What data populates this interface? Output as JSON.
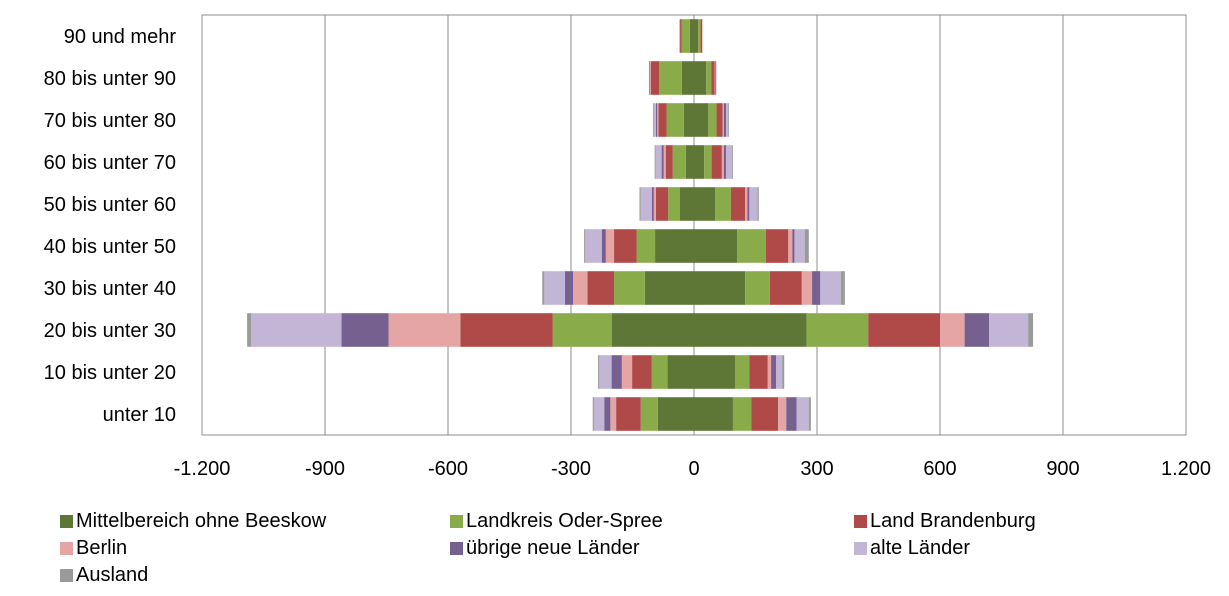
{
  "chart_data": {
    "type": "bar",
    "orientation": "horizontal",
    "stacked": true,
    "layout": "population-pyramid",
    "xlim": [
      -1200,
      1200
    ],
    "xticks": [
      "-1.200",
      "-900",
      "-600",
      "-300",
      "0",
      "300",
      "600",
      "900",
      "1.200"
    ],
    "tick_values": [
      -1200,
      -900,
      -600,
      -300,
      0,
      300,
      600,
      900,
      1200
    ],
    "grid": true,
    "legend_position": "bottom",
    "categories": [
      "90 und mehr",
      "80 bis unter 90",
      "70 bis unter 80",
      "60 bis unter 70",
      "50 bis unter 60",
      "40 bis unter 50",
      "30 bis unter 40",
      "20 bis unter 30",
      "10 bis unter 20",
      "unter 10"
    ],
    "series": [
      {
        "name": "Mittelbereich ohne Beeskow",
        "color": "#5f7736",
        "left": [
          -10,
          -30,
          -25,
          -20,
          -35,
          -95,
          -120,
          -200,
          -65,
          -88
        ],
        "right": [
          10,
          30,
          35,
          25,
          52,
          105,
          125,
          275,
          100,
          95
        ]
      },
      {
        "name": "Landkreis Oder-Spree",
        "color": "#8aab4a",
        "left": [
          -20,
          -55,
          -42,
          -32,
          -28,
          -45,
          -75,
          -145,
          -38,
          -42
        ],
        "right": [
          6,
          12,
          20,
          18,
          38,
          70,
          60,
          150,
          35,
          45
        ]
      },
      {
        "name": "Land Brandenburg",
        "color": "#b04a48",
        "left": [
          -4,
          -20,
          -20,
          -17,
          -30,
          -55,
          -65,
          -225,
          -48,
          -60
        ],
        "right": [
          4,
          8,
          15,
          25,
          35,
          55,
          78,
          175,
          45,
          65
        ]
      },
      {
        "name": "Berlin",
        "color": "#e5a5a4",
        "left": [
          -2,
          -2,
          -3,
          -5,
          -5,
          -20,
          -35,
          -175,
          -25,
          -14
        ],
        "right": [
          1,
          2,
          3,
          5,
          5,
          10,
          25,
          60,
          8,
          20
        ]
      },
      {
        "name": "übrige neue Länder",
        "color": "#76608f",
        "left": [
          0,
          -2,
          -3,
          -5,
          -5,
          -10,
          -20,
          -115,
          -25,
          -15
        ],
        "right": [
          0,
          2,
          5,
          5,
          5,
          5,
          20,
          60,
          12,
          25
        ]
      },
      {
        "name": "alte Länder",
        "color": "#c2b5d6",
        "left": [
          0,
          -1,
          -5,
          -15,
          -27,
          -40,
          -50,
          -220,
          -30,
          -25
        ],
        "right": [
          0,
          1,
          5,
          15,
          20,
          25,
          50,
          95,
          15,
          30
        ]
      },
      {
        "name": "Ausland",
        "color": "#9a9a9a",
        "left": [
          0,
          0,
          -2,
          -2,
          -3,
          -3,
          -5,
          -10,
          -3,
          -3
        ],
        "right": [
          0,
          0,
          2,
          2,
          3,
          10,
          10,
          12,
          5,
          5
        ]
      }
    ]
  }
}
